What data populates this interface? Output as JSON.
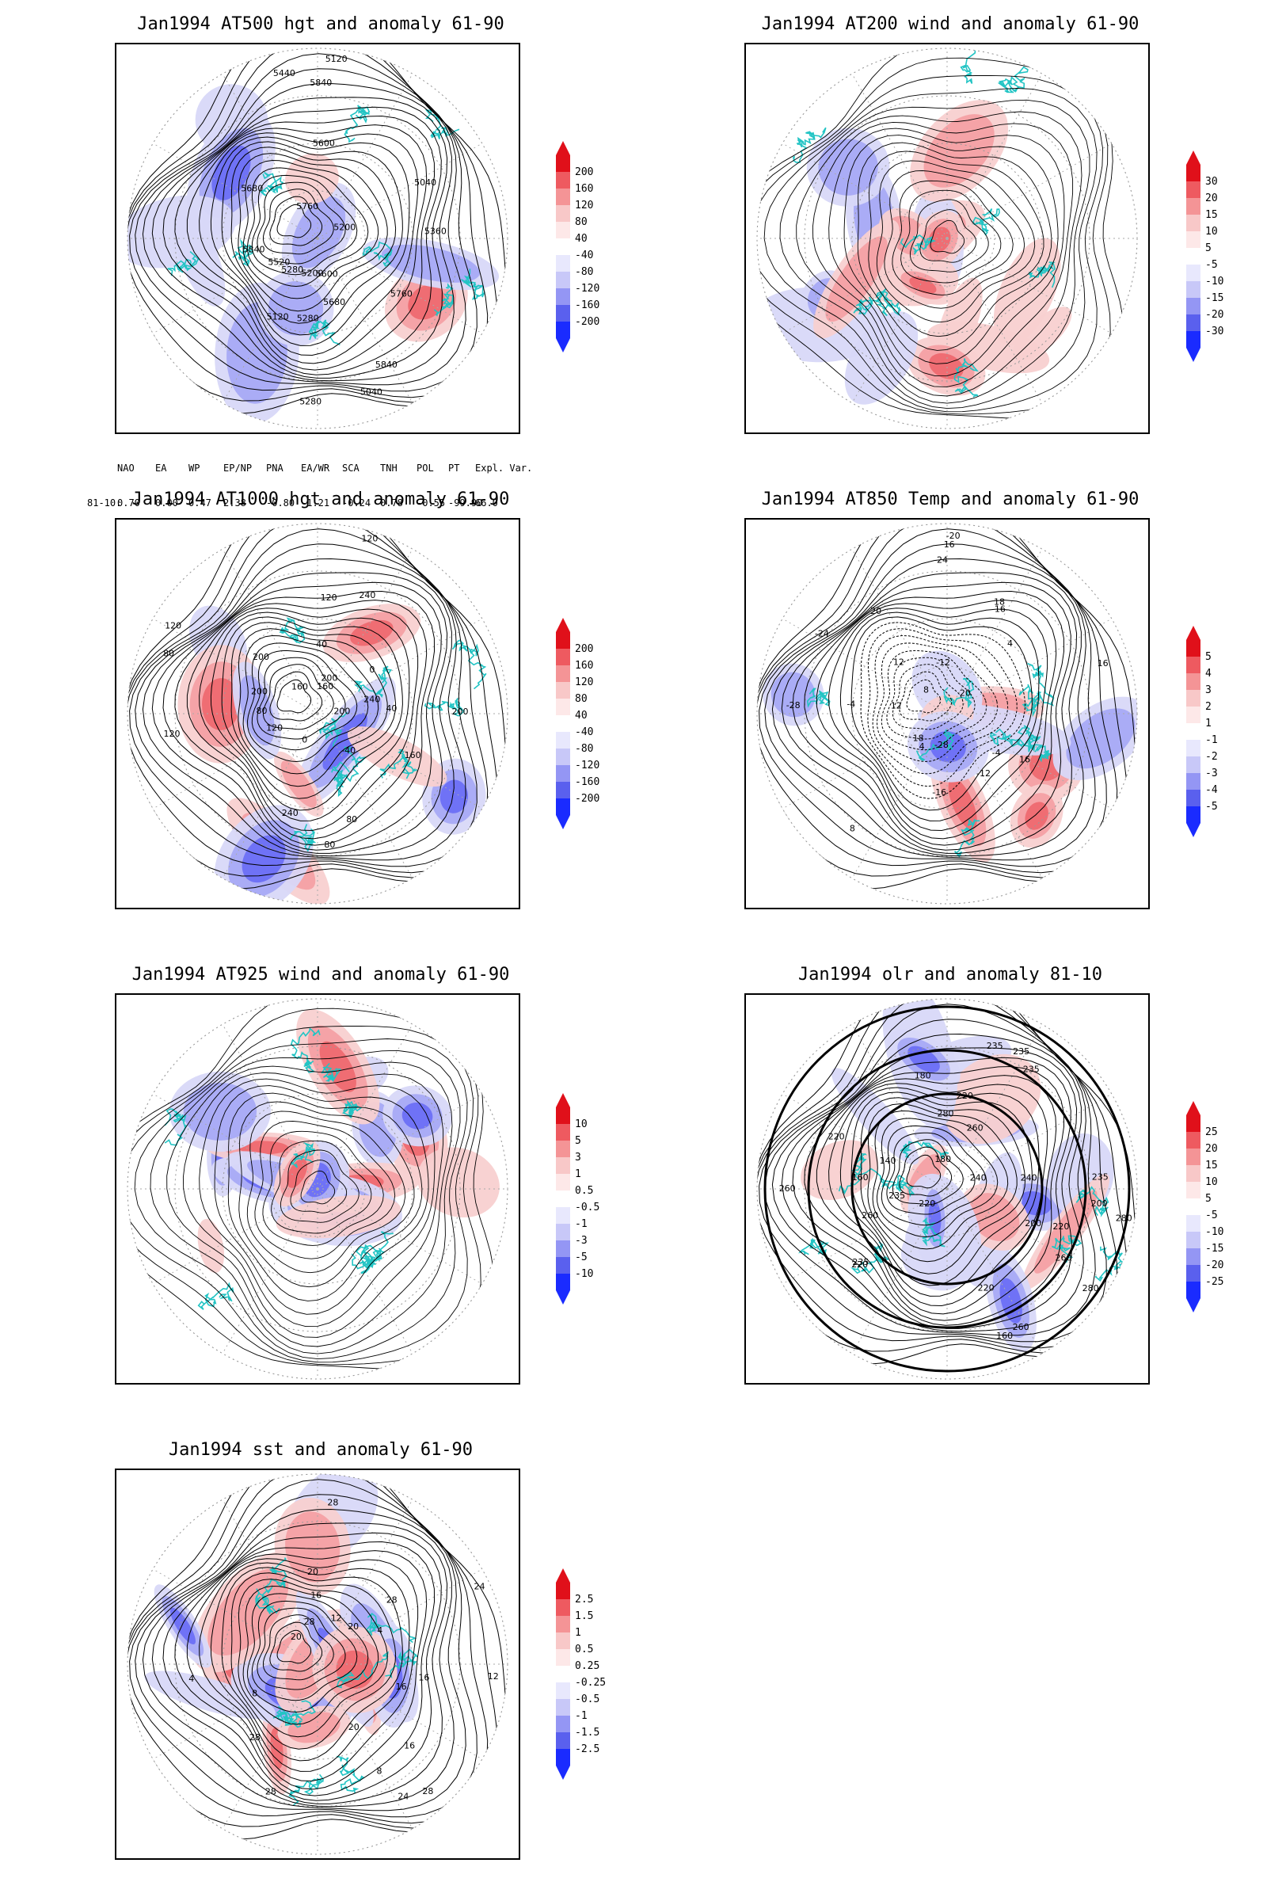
{
  "panels": [
    {
      "id": "p500",
      "title": "Jan1994 AT500 hgt and anomaly 61-90",
      "labels": [
        "5840",
        "5840",
        "5760",
        "5680",
        "5600",
        "5200",
        "5280",
        "5280",
        "5040",
        "5040",
        "5120",
        "5120",
        "5200",
        "5280",
        "5360",
        "5440",
        "5520",
        "5600",
        "5680",
        "5760",
        "5840"
      ],
      "scale": [
        "200",
        "160",
        "120",
        "80",
        "40",
        "-40",
        "-80",
        "-120",
        "-160",
        "-200"
      ]
    },
    {
      "id": "p200",
      "title": "Jan1994 AT200 wind and anomaly 61-90",
      "labels": [],
      "scale": [
        "30",
        "20",
        "15",
        "10",
        "5",
        "-5",
        "-10",
        "-15",
        "-20",
        "-30"
      ]
    },
    {
      "id": "p1000",
      "title": "Jan1994 AT1000 hgt and anomaly 61-90",
      "labels": [
        "80",
        "80",
        "160",
        "0",
        "40",
        "120",
        "200",
        "240",
        "160",
        "200",
        "240",
        "120",
        "80",
        "40",
        "0",
        "-40",
        "200",
        "120",
        "240",
        "200",
        "160",
        "200",
        "120",
        "80",
        "120"
      ],
      "scale": [
        "200",
        "160",
        "120",
        "80",
        "40",
        "-40",
        "-80",
        "-120",
        "-160",
        "-200"
      ]
    },
    {
      "id": "p850",
      "title": "Jan1994 AT850 Temp and anomaly 61-90",
      "labels": [
        "16",
        "12",
        "8",
        "4",
        "-4",
        "-12",
        "-20",
        "-24",
        "-28",
        "-24",
        "-28",
        "-16",
        "-12",
        "-4",
        "4",
        "8",
        "12",
        "16",
        "20",
        "16",
        "18",
        "18",
        "16",
        "20"
      ],
      "scale": [
        "5",
        "4",
        "3",
        "2",
        "1",
        "-1",
        "-2",
        "-3",
        "-4",
        "-5"
      ]
    },
    {
      "id": "p925",
      "title": "Jan1994 AT925 wind and anomaly 61-90",
      "labels": [],
      "scale": [
        "10",
        "5",
        "3",
        "1",
        "0.5",
        "-0.5",
        "-1",
        "-3",
        "-5",
        "-10"
      ]
    },
    {
      "id": "polr",
      "title": "Jan1994 olr and anomaly 81-10",
      "labels": [
        "220",
        "235",
        "260",
        "280",
        "240",
        "220",
        "235",
        "200",
        "220",
        "235",
        "260",
        "240",
        "160",
        "180",
        "140",
        "160",
        "200",
        "180",
        "220",
        "260",
        "280",
        "235",
        "220",
        "235",
        "260",
        "280",
        "220",
        "235",
        "260"
      ],
      "scale": [
        "25",
        "20",
        "15",
        "10",
        "5",
        "-5",
        "-10",
        "-15",
        "-20",
        "-25"
      ]
    },
    {
      "id": "psst",
      "title": "Jan1994 sst and anomaly 61-90",
      "labels": [
        "28",
        "24",
        "20",
        "16",
        "12",
        "8",
        "4",
        "16",
        "20",
        "28",
        "28",
        "24",
        "20",
        "16",
        "12",
        "8",
        "4",
        "20",
        "16",
        "28",
        "28",
        "28"
      ],
      "scale": [
        "2.5",
        "1.5",
        "1",
        "0.5",
        "0.25",
        "-0.25",
        "-0.5",
        "-1",
        "-1.5",
        "-2.5"
      ]
    }
  ],
  "index_table": {
    "headers": [
      "NAO",
      "EA",
      "WP",
      "EP/NP",
      "PNA",
      "EA/WR",
      "SCA",
      "TNH",
      "POL",
      "PT",
      "Expl. Var."
    ],
    "row_label": "81-10:",
    "values": [
      "0.70",
      "0.00",
      "0.47",
      "2.38",
      "-0.80",
      "-1.21",
      "-0.24",
      "0.78",
      "-0.55",
      "-99.90",
      "66.0"
    ]
  },
  "colors": {
    "coast": "#22c4c4",
    "contour": "#000000",
    "pos": "#e0101a",
    "neg": "#1a2bff"
  }
}
